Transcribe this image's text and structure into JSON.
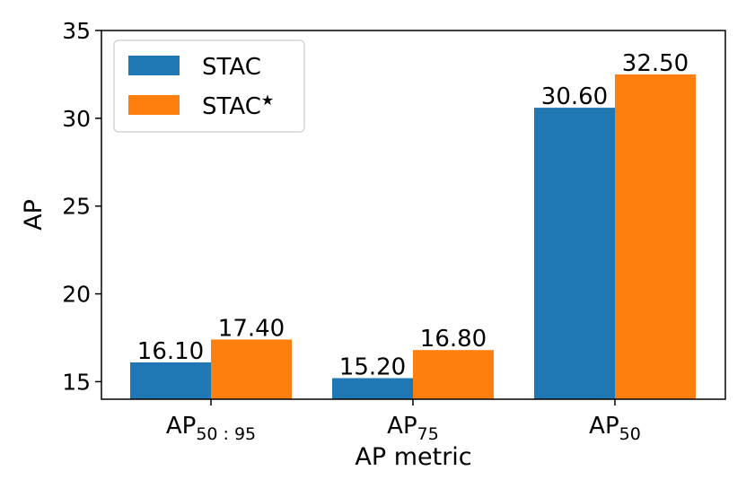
{
  "chart_data": {
    "type": "bar",
    "title": "",
    "xlabel": "AP metric",
    "ylabel": "AP",
    "ylim": [
      14,
      35
    ],
    "yticks": [
      15,
      20,
      25,
      30,
      35
    ],
    "categories": [
      {
        "base": "AP",
        "sub": "50 : 95"
      },
      {
        "base": "AP",
        "sub": "75"
      },
      {
        "base": "AP",
        "sub": "50"
      }
    ],
    "series": [
      {
        "name": "STAC",
        "sup": "",
        "color": "#1f77b4",
        "values": [
          16.1,
          15.2,
          30.6
        ],
        "labels": [
          "16.10",
          "15.20",
          "30.60"
        ]
      },
      {
        "name": "STAC",
        "sup": "★",
        "color": "#ff7f0e",
        "values": [
          17.4,
          16.8,
          32.5
        ],
        "labels": [
          "17.40",
          "16.80",
          "32.50"
        ]
      }
    ],
    "legend": "top-left",
    "grid": false
  }
}
